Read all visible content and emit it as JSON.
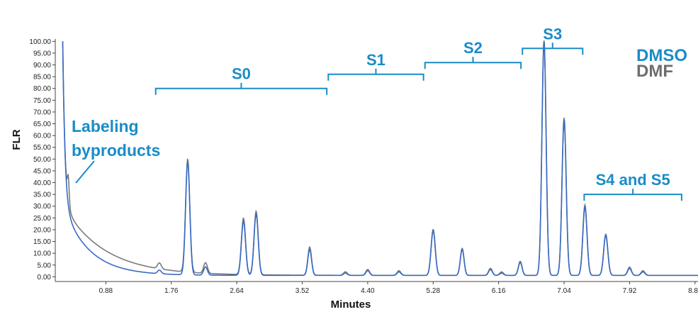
{
  "chart_data": {
    "type": "line",
    "title": "",
    "xlabel": "Minutes",
    "ylabel": "FLR",
    "xlim": [
      0.2,
      8.84
    ],
    "ylim": [
      -2,
      101
    ],
    "x_ticks": [
      0.88,
      1.76,
      2.64,
      3.52,
      4.4,
      5.28,
      6.16,
      7.04,
      7.92,
      8.8
    ],
    "x_tick_labels": [
      "0.88",
      "1.76",
      "2.64",
      "3.52",
      "4.40",
      "5.28",
      "6.16",
      "7.04",
      "7.92",
      "8.80"
    ],
    "y_ticks": [
      0,
      5,
      10,
      15,
      20,
      25,
      30,
      35,
      40,
      45,
      50,
      55,
      60,
      65,
      70,
      75,
      80,
      85,
      90,
      95,
      100
    ],
    "y_tick_labels": [
      "0.00",
      "5.00",
      "10.00",
      "15.00",
      "20.00",
      "25.00",
      "30.00",
      "35.00",
      "40.00",
      "45.00",
      "50.00",
      "55.00",
      "60.00",
      "65.00",
      "70.00",
      "75.00",
      "80.00",
      "85.00",
      "90.00",
      "95.00",
      "100.00"
    ],
    "grid": false,
    "legend_position": "top-right",
    "colors": {
      "DMSO": "#1a8cc7",
      "DMF": "#6e6e6e",
      "trace_blue": "#3a6bc2",
      "trace_gray": "#7a7a7a"
    },
    "series": [
      {
        "name": "DMSO",
        "baseline_decay": {
          "start_x": 0.3,
          "start_y": 100,
          "tail": 0.6,
          "amp1": 70,
          "k1": 0.03,
          "amp2": 30,
          "k2": 0.35
        },
        "shoulders": [
          {
            "x": 0.375,
            "y": 30
          }
        ],
        "peaks": [
          {
            "x": 1.6,
            "y": 1.5
          },
          {
            "x": 1.98,
            "y": 48
          },
          {
            "x": 2.22,
            "y": 3.5
          },
          {
            "x": 2.73,
            "y": 23
          },
          {
            "x": 2.9,
            "y": 26
          },
          {
            "x": 3.62,
            "y": 11
          },
          {
            "x": 4.1,
            "y": 1
          },
          {
            "x": 4.4,
            "y": 2
          },
          {
            "x": 4.82,
            "y": 1.5
          },
          {
            "x": 5.28,
            "y": 19
          },
          {
            "x": 5.67,
            "y": 11
          },
          {
            "x": 6.05,
            "y": 2.5
          },
          {
            "x": 6.2,
            "y": 1
          },
          {
            "x": 6.45,
            "y": 5.5
          },
          {
            "x": 6.77,
            "y": 99
          },
          {
            "x": 7.04,
            "y": 66
          },
          {
            "x": 7.32,
            "y": 29
          },
          {
            "x": 7.6,
            "y": 17
          },
          {
            "x": 7.92,
            "y": 3
          },
          {
            "x": 8.1,
            "y": 1.5
          }
        ]
      },
      {
        "name": "DMF",
        "baseline_decay": {
          "start_x": 0.3,
          "start_y": 100,
          "tail": 0.6,
          "amp1": 70,
          "k1": 0.03,
          "amp2": 30,
          "k2": 0.55
        },
        "shoulders": [
          {
            "x": 0.375,
            "y": 43
          }
        ],
        "peaks": [
          {
            "x": 1.6,
            "y": 2.5
          },
          {
            "x": 1.98,
            "y": 48
          },
          {
            "x": 2.22,
            "y": 4.5
          },
          {
            "x": 2.73,
            "y": 24
          },
          {
            "x": 2.9,
            "y": 27
          },
          {
            "x": 3.62,
            "y": 12
          },
          {
            "x": 4.1,
            "y": 1.5
          },
          {
            "x": 4.4,
            "y": 2.5
          },
          {
            "x": 4.82,
            "y": 2
          },
          {
            "x": 5.28,
            "y": 19.5
          },
          {
            "x": 5.67,
            "y": 11.5
          },
          {
            "x": 6.05,
            "y": 3
          },
          {
            "x": 6.2,
            "y": 1.5
          },
          {
            "x": 6.45,
            "y": 6
          },
          {
            "x": 6.77,
            "y": 100
          },
          {
            "x": 7.04,
            "y": 67
          },
          {
            "x": 7.32,
            "y": 30
          },
          {
            "x": 7.6,
            "y": 17.5
          },
          {
            "x": 7.92,
            "y": 3.5
          },
          {
            "x": 8.1,
            "y": 2
          }
        ]
      }
    ],
    "annotations": [
      {
        "label": "S0",
        "x_start": 1.55,
        "x_end": 3.85,
        "y": 80
      },
      {
        "label": "S1",
        "x_start": 3.87,
        "x_end": 5.15,
        "y": 86
      },
      {
        "label": "S2",
        "x_start": 5.17,
        "x_end": 6.46,
        "y": 91
      },
      {
        "label": "S3",
        "x_start": 6.48,
        "x_end": 7.29,
        "y": 97
      },
      {
        "label": "S4 and S5",
        "x_start": 7.31,
        "x_end": 8.62,
        "y": 35
      }
    ],
    "byproducts_label_lines": [
      "Labeling",
      "byproducts"
    ]
  }
}
